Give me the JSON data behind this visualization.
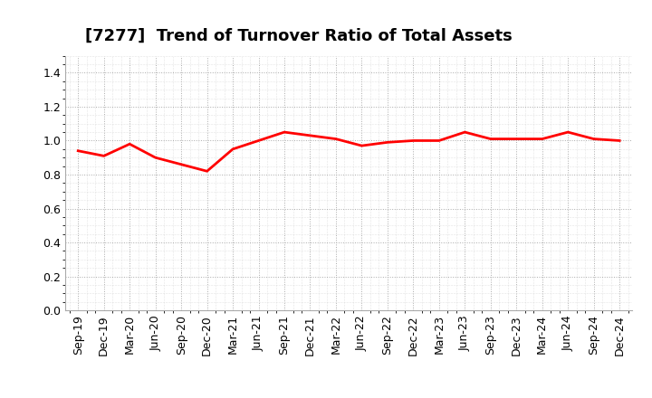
{
  "title": "[7277]  Trend of Turnover Ratio of Total Assets",
  "x_labels": [
    "Sep-19",
    "Dec-19",
    "Mar-20",
    "Jun-20",
    "Sep-20",
    "Dec-20",
    "Mar-21",
    "Jun-21",
    "Sep-21",
    "Dec-21",
    "Mar-22",
    "Jun-22",
    "Sep-22",
    "Dec-22",
    "Mar-23",
    "Jun-23",
    "Sep-23",
    "Dec-23",
    "Mar-24",
    "Jun-24",
    "Sep-24",
    "Dec-24"
  ],
  "y_values": [
    0.94,
    0.91,
    0.98,
    0.9,
    0.86,
    0.82,
    0.95,
    1.0,
    1.05,
    1.03,
    1.01,
    0.97,
    0.99,
    1.0,
    1.0,
    1.05,
    1.01,
    1.01,
    1.01,
    1.05,
    1.01,
    1.0
  ],
  "line_color": "#FF0000",
  "ylim": [
    0.0,
    1.5
  ],
  "yticks": [
    0.0,
    0.2,
    0.4,
    0.6,
    0.8,
    1.0,
    1.2,
    1.4
  ],
  "grid_color": "#AAAAAA",
  "bg_color": "#FFFFFF",
  "title_fontsize": 13,
  "tick_fontsize": 9,
  "line_width": 2.0
}
